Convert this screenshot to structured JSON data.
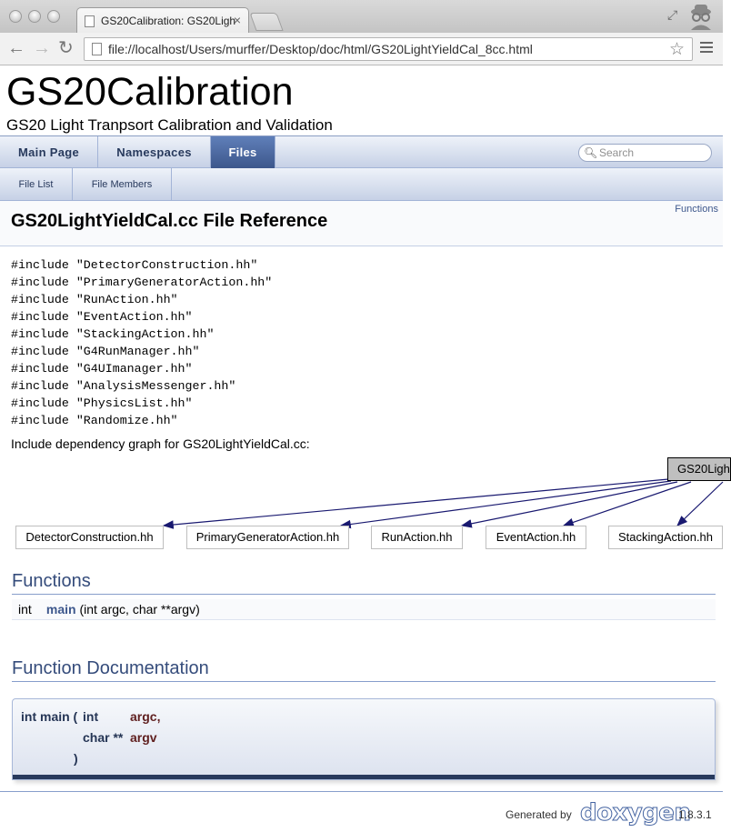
{
  "browser": {
    "tab_title": "GS20Calibration: GS20Ligh",
    "url": "file://localhost/Users/murffer/Desktop/doc/html/GS20LightYieldCal_8cc.html"
  },
  "project": {
    "name": "GS20Calibration",
    "brief": "GS20 Light Tranpsort Calibration and Validation"
  },
  "nav": {
    "tabs": [
      "Main Page",
      "Namespaces",
      "Files"
    ],
    "active": "Files",
    "search_placeholder": "Search",
    "subtabs": [
      "File List",
      "File Members"
    ]
  },
  "header": {
    "title": "GS20LightYieldCal.cc File Reference",
    "summary_link": "Functions"
  },
  "includes": [
    "#include \"DetectorConstruction.hh\"",
    "#include \"PrimaryGeneratorAction.hh\"",
    "#include \"RunAction.hh\"",
    "#include \"EventAction.hh\"",
    "#include \"StackingAction.hh\"",
    "#include \"G4RunManager.hh\"",
    "#include \"G4UImanager.hh\"",
    "#include \"AnalysisMessenger.hh\"",
    "#include \"PhysicsList.hh\"",
    "#include \"Randomize.hh\""
  ],
  "depgraph": {
    "label": "Include dependency graph for GS20LightYieldCal.cc:",
    "main_node": "GS20Ligh",
    "nodes": [
      "DetectorConstruction.hh",
      "PrimaryGeneratorAction.hh",
      "RunAction.hh",
      "EventAction.hh",
      "StackingAction.hh"
    ],
    "edge_color": "#191970"
  },
  "functions": {
    "heading": "Functions",
    "rows": [
      {
        "type": "int",
        "name": "main",
        "args": "(int argc, char **argv)"
      }
    ]
  },
  "function_doc": {
    "heading": "Function Documentation",
    "signature": {
      "prefix": "int main (",
      "p1_type": "int",
      "p1_name": "argc,",
      "p2_type": "char **",
      "p2_name": "argv",
      "close": ")"
    }
  },
  "footer": {
    "generated_by": "Generated by",
    "logo": "doxygen",
    "version": "1.8.3.1"
  }
}
